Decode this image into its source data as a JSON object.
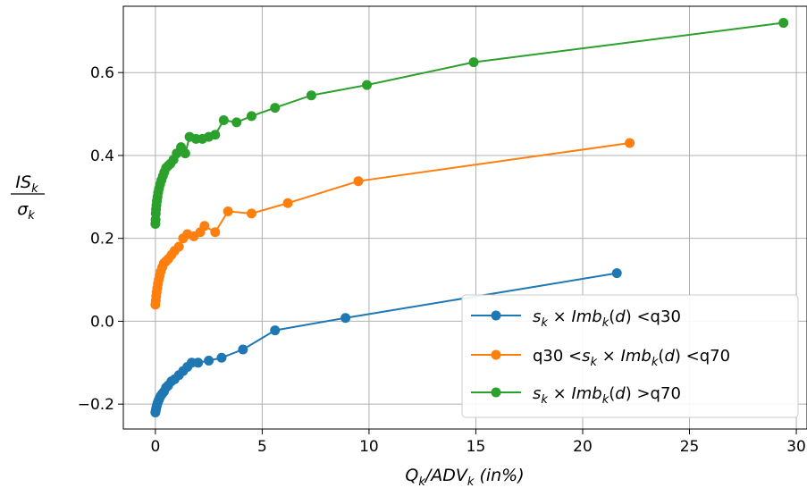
{
  "chart_data": {
    "type": "line",
    "xlabel": "Q_k/ADV_k (in%)",
    "ylabel": "IS_k / σ_k",
    "xlim": [
      -1.5,
      30.5
    ],
    "ylim": [
      -0.26,
      0.76
    ],
    "xticks": [
      0,
      5,
      10,
      15,
      20,
      25,
      30
    ],
    "yticks": [
      -0.2,
      0.0,
      0.2,
      0.4,
      0.6
    ],
    "ytick_labels": [
      "−0.2",
      "0.0",
      "0.2",
      "0.4",
      "0.6"
    ],
    "grid": true,
    "legend_position": "bottom-right",
    "series": [
      {
        "name": "s_k × Imb_k(d) <q30",
        "color": "#1f77b4",
        "x": [
          0.0,
          0.02,
          0.04,
          0.06,
          0.09,
          0.12,
          0.16,
          0.2,
          0.25,
          0.32,
          0.4,
          0.5,
          0.6,
          0.75,
          0.9,
          1.1,
          1.3,
          1.5,
          1.7,
          2.0,
          2.5,
          3.1,
          4.1,
          5.6,
          8.9,
          21.6
        ],
        "y": [
          -0.22,
          -0.215,
          -0.21,
          -0.205,
          -0.2,
          -0.195,
          -0.19,
          -0.185,
          -0.18,
          -0.175,
          -0.17,
          -0.16,
          -0.155,
          -0.145,
          -0.14,
          -0.13,
          -0.12,
          -0.11,
          -0.1,
          -0.1,
          -0.095,
          -0.088,
          -0.068,
          -0.022,
          0.008,
          0.116
        ]
      },
      {
        "name": "q30 <s_k × Imb_k(d) <q70",
        "color": "#ff7f0e",
        "x": [
          0.0,
          0.02,
          0.04,
          0.06,
          0.09,
          0.12,
          0.16,
          0.2,
          0.25,
          0.32,
          0.4,
          0.5,
          0.6,
          0.75,
          0.9,
          1.1,
          1.3,
          1.5,
          1.8,
          2.1,
          2.3,
          2.8,
          3.4,
          4.5,
          6.2,
          9.5,
          22.2
        ],
        "y": [
          0.04,
          0.05,
          0.06,
          0.07,
          0.08,
          0.09,
          0.1,
          0.11,
          0.12,
          0.13,
          0.14,
          0.145,
          0.15,
          0.16,
          0.17,
          0.18,
          0.2,
          0.21,
          0.205,
          0.215,
          0.23,
          0.215,
          0.265,
          0.26,
          0.285,
          0.338,
          0.43
        ]
      },
      {
        "name": "s_k × Imb_k(d) >q70",
        "color": "#2ca02c",
        "x": [
          0.0,
          0.01,
          0.02,
          0.03,
          0.05,
          0.07,
          0.1,
          0.13,
          0.17,
          0.22,
          0.28,
          0.35,
          0.42,
          0.5,
          0.6,
          0.7,
          0.85,
          1.0,
          1.2,
          1.4,
          1.6,
          1.9,
          2.2,
          2.5,
          2.8,
          3.2,
          3.8,
          4.5,
          5.6,
          7.3,
          9.9,
          14.9,
          29.4
        ],
        "y": [
          0.235,
          0.245,
          0.26,
          0.27,
          0.28,
          0.29,
          0.3,
          0.31,
          0.32,
          0.33,
          0.34,
          0.35,
          0.36,
          0.37,
          0.375,
          0.38,
          0.39,
          0.405,
          0.42,
          0.405,
          0.445,
          0.44,
          0.44,
          0.445,
          0.45,
          0.485,
          0.48,
          0.495,
          0.515,
          0.545,
          0.57,
          0.625,
          0.72
        ]
      }
    ]
  }
}
